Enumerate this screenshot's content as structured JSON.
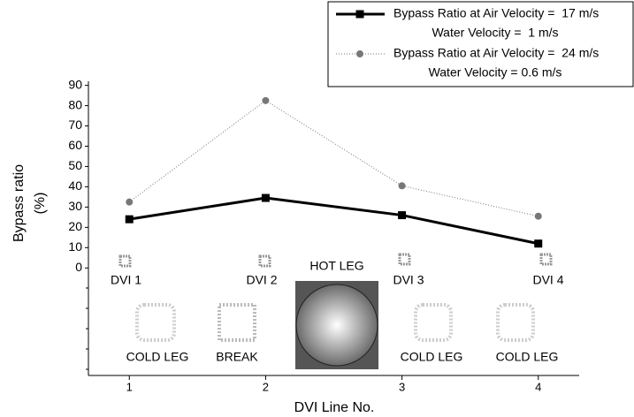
{
  "chart_data": {
    "type": "line",
    "x_label": "DVI Line No.",
    "y_label": [
      "Bypass ratio",
      "(%)"
    ],
    "x": [
      1,
      2,
      3,
      4
    ],
    "xlim": [
      0.7,
      4.3
    ],
    "xticks": [
      1,
      2,
      3,
      4
    ],
    "ylim": [
      -53,
      92
    ],
    "yticks": [
      0,
      10,
      20,
      30,
      40,
      50,
      60,
      70,
      80,
      90
    ],
    "legend": "top-right",
    "series": [
      {
        "name": "Bypass Ratio at Air Velocity =  17 m/s",
        "name_line2": "Water Velocity =  1 m/s",
        "color": "#000000",
        "style": "solid",
        "marker": "square",
        "values": [
          24,
          34.5,
          26,
          12
        ]
      },
      {
        "name": "Bypass Ratio at Air Velocity =  24 m/s",
        "name_line2": "Water Velocity = 0.6 m/s",
        "color": "#777777",
        "style": "dotted",
        "marker": "circle",
        "values": [
          32.5,
          82.5,
          40.5,
          25.5
        ]
      }
    ]
  },
  "diagram_labels": [
    "DVI 1",
    "DVI 2",
    "HOT LEG",
    "DVI 3",
    "DVI 4",
    "COLD LEG",
    "BREAK",
    "COLD LEG",
    "COLD LEG"
  ]
}
